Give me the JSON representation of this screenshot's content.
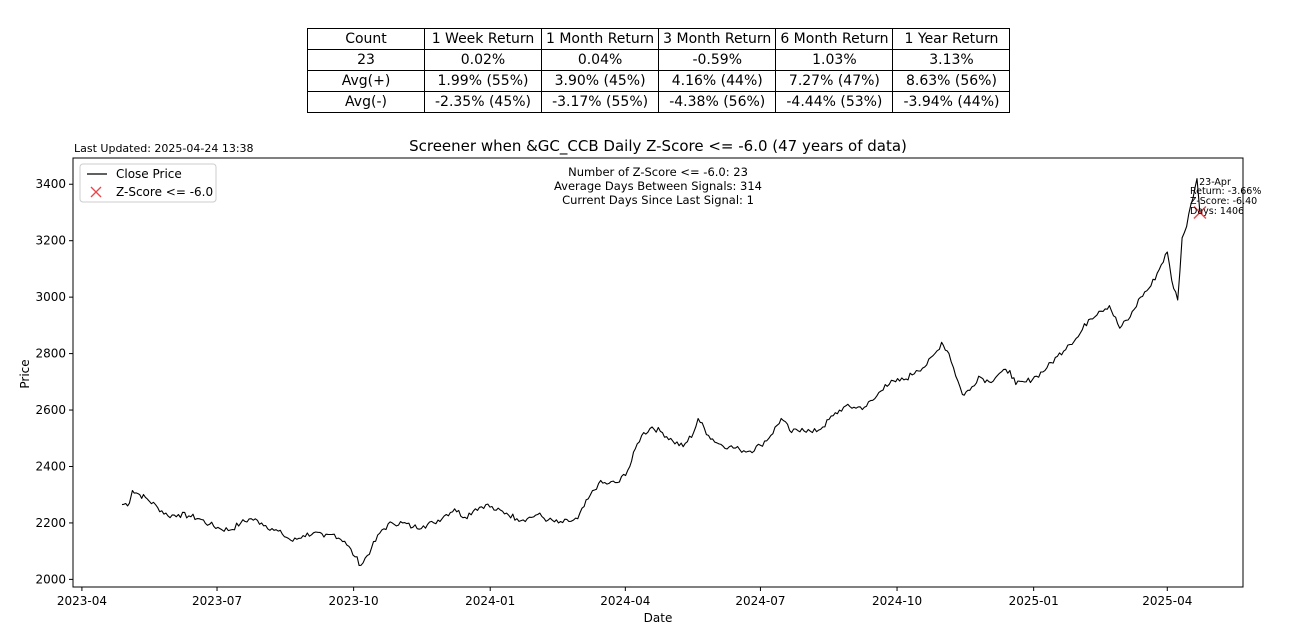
{
  "stats_table": {
    "header": [
      "Count",
      "1 Week Return",
      "1 Month Return",
      "3 Month Return",
      "6 Month Return",
      "1 Year Return"
    ],
    "rows": [
      [
        "23",
        "0.02%",
        "0.04%",
        "-0.59%",
        "1.03%",
        "3.13%"
      ],
      [
        "Avg(+)",
        "1.99% (55%)",
        "3.90% (45%)",
        "4.16% (44%)",
        "7.27% (47%)",
        "8.63% (56%)"
      ],
      [
        "Avg(-)",
        "-2.35% (45%)",
        "-3.17% (55%)",
        "-4.38% (56%)",
        "-4.44% (53%)",
        "-3.94% (44%)"
      ]
    ]
  },
  "last_updated": "Last Updated: 2025-04-24 13:38",
  "chart_data": {
    "type": "line",
    "title": "Screener when &GC_CCB Daily Z-Score <= -6.0 (47 years of data)",
    "xlabel": "Date",
    "ylabel": "Price",
    "xlim": [
      "2023-03-26",
      "2025-05-22"
    ],
    "ylim": [
      1973,
      3493
    ],
    "grid": false,
    "legend_position": "upper-left",
    "x_ticks": [
      "2023-04",
      "2023-07",
      "2023-10",
      "2024-01",
      "2024-04",
      "2024-07",
      "2024-10",
      "2025-01",
      "2025-04"
    ],
    "y_ticks": [
      2000,
      2200,
      2400,
      2600,
      2800,
      3000,
      3200,
      3400
    ],
    "series": [
      {
        "name": "Close Price",
        "color": "#000000",
        "points": [
          [
            "2023-04-28",
            2265
          ],
          [
            "2023-05-03",
            2270
          ],
          [
            "2023-05-05",
            2315
          ],
          [
            "2023-05-10",
            2300
          ],
          [
            "2023-05-15",
            2285
          ],
          [
            "2023-05-22",
            2255
          ],
          [
            "2023-05-29",
            2225
          ],
          [
            "2023-06-05",
            2230
          ],
          [
            "2023-06-12",
            2225
          ],
          [
            "2023-06-19",
            2215
          ],
          [
            "2023-06-26",
            2195
          ],
          [
            "2023-07-03",
            2180
          ],
          [
            "2023-07-10",
            2175
          ],
          [
            "2023-07-17",
            2200
          ],
          [
            "2023-07-24",
            2215
          ],
          [
            "2023-07-31",
            2200
          ],
          [
            "2023-08-07",
            2180
          ],
          [
            "2023-08-14",
            2160
          ],
          [
            "2023-08-21",
            2135
          ],
          [
            "2023-08-28",
            2155
          ],
          [
            "2023-09-04",
            2165
          ],
          [
            "2023-09-11",
            2150
          ],
          [
            "2023-09-18",
            2160
          ],
          [
            "2023-09-25",
            2135
          ],
          [
            "2023-10-02",
            2080
          ],
          [
            "2023-10-06",
            2050
          ],
          [
            "2023-10-13",
            2110
          ],
          [
            "2023-10-20",
            2175
          ],
          [
            "2023-10-27",
            2200
          ],
          [
            "2023-11-03",
            2200
          ],
          [
            "2023-11-10",
            2185
          ],
          [
            "2023-11-17",
            2190
          ],
          [
            "2023-11-24",
            2200
          ],
          [
            "2023-12-01",
            2225
          ],
          [
            "2023-12-08",
            2250
          ],
          [
            "2023-12-15",
            2220
          ],
          [
            "2023-12-22",
            2250
          ],
          [
            "2023-12-29",
            2265
          ],
          [
            "2024-01-05",
            2245
          ],
          [
            "2024-01-12",
            2235
          ],
          [
            "2024-01-19",
            2215
          ],
          [
            "2024-01-26",
            2215
          ],
          [
            "2024-02-02",
            2230
          ],
          [
            "2024-02-09",
            2210
          ],
          [
            "2024-02-16",
            2200
          ],
          [
            "2024-02-23",
            2205
          ],
          [
            "2024-02-29",
            2215
          ],
          [
            "2024-03-07",
            2285
          ],
          [
            "2024-03-14",
            2340
          ],
          [
            "2024-03-21",
            2340
          ],
          [
            "2024-03-28",
            2345
          ],
          [
            "2024-04-04",
            2400
          ],
          [
            "2024-04-09",
            2480
          ],
          [
            "2024-04-12",
            2510
          ],
          [
            "2024-04-19",
            2540
          ],
          [
            "2024-04-26",
            2520
          ],
          [
            "2024-05-03",
            2490
          ],
          [
            "2024-05-10",
            2470
          ],
          [
            "2024-05-17",
            2520
          ],
          [
            "2024-05-20",
            2570
          ],
          [
            "2024-05-27",
            2510
          ],
          [
            "2024-06-03",
            2480
          ],
          [
            "2024-06-10",
            2470
          ],
          [
            "2024-06-17",
            2460
          ],
          [
            "2024-06-24",
            2455
          ],
          [
            "2024-07-01",
            2475
          ],
          [
            "2024-07-08",
            2510
          ],
          [
            "2024-07-15",
            2570
          ],
          [
            "2024-07-22",
            2520
          ],
          [
            "2024-07-29",
            2535
          ],
          [
            "2024-08-05",
            2520
          ],
          [
            "2024-08-12",
            2540
          ],
          [
            "2024-08-19",
            2580
          ],
          [
            "2024-08-26",
            2610
          ],
          [
            "2024-09-02",
            2610
          ],
          [
            "2024-09-09",
            2610
          ],
          [
            "2024-09-16",
            2640
          ],
          [
            "2024-09-23",
            2690
          ],
          [
            "2024-09-30",
            2700
          ],
          [
            "2024-10-07",
            2710
          ],
          [
            "2024-10-14",
            2740
          ],
          [
            "2024-10-21",
            2760
          ],
          [
            "2024-10-28",
            2810
          ],
          [
            "2024-10-31",
            2840
          ],
          [
            "2024-11-05",
            2800
          ],
          [
            "2024-11-08",
            2750
          ],
          [
            "2024-11-14",
            2655
          ],
          [
            "2024-11-19",
            2670
          ],
          [
            "2024-11-25",
            2720
          ],
          [
            "2024-12-02",
            2700
          ],
          [
            "2024-12-09",
            2730
          ],
          [
            "2024-12-16",
            2740
          ],
          [
            "2024-12-20",
            2690
          ],
          [
            "2024-12-27",
            2700
          ],
          [
            "2025-01-03",
            2720
          ],
          [
            "2025-01-10",
            2750
          ],
          [
            "2025-01-17",
            2790
          ],
          [
            "2025-01-24",
            2830
          ],
          [
            "2025-01-31",
            2860
          ],
          [
            "2025-02-07",
            2920
          ],
          [
            "2025-02-14",
            2950
          ],
          [
            "2025-02-21",
            2970
          ],
          [
            "2025-02-28",
            2890
          ],
          [
            "2025-03-07",
            2930
          ],
          [
            "2025-03-14",
            3000
          ],
          [
            "2025-03-21",
            3040
          ],
          [
            "2025-03-28",
            3115
          ],
          [
            "2025-04-01",
            3160
          ],
          [
            "2025-04-04",
            3060
          ],
          [
            "2025-04-08",
            2990
          ],
          [
            "2025-04-11",
            3210
          ],
          [
            "2025-04-14",
            3250
          ],
          [
            "2025-04-17",
            3330
          ],
          [
            "2025-04-21",
            3420
          ],
          [
            "2025-04-23",
            3300
          ]
        ]
      },
      {
        "name": "Z-Score <= -6.0",
        "type": "scatter",
        "marker": "x",
        "color": "#e8484b",
        "points": [
          [
            "2025-04-23",
            3300
          ]
        ]
      }
    ],
    "annotations": {
      "info_lines": [
        "Number of Z-Score <= -6.0: 23",
        "Average Days Between Signals: 314",
        "Current Days Since Last Signal: 1"
      ],
      "signal_label": [
        "23-Apr",
        "Return: -3.66%",
        "Z-Score: -6.40",
        "Days: 1406"
      ]
    }
  }
}
